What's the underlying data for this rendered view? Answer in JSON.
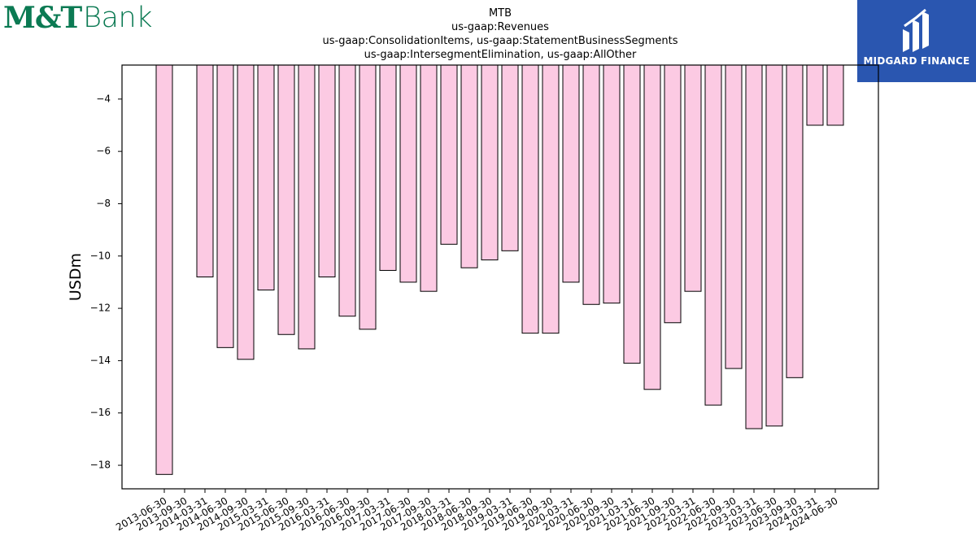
{
  "brand": {
    "left_logo_mt": "M&T",
    "left_logo_bank": "Bank",
    "left_color": "#0b7a53",
    "right_logo_name": "MIDGARD FINANCE",
    "right_bg": "#2a56b0"
  },
  "chart_data": {
    "type": "bar",
    "title_lines": [
      "MTB",
      "us-gaap:Revenues",
      "us-gaap:ConsolidationItems, us-gaap:StatementBusinessSegments",
      "us-gaap:IntersegmentElimination, us-gaap:AllOther"
    ],
    "xlabel": "",
    "ylabel": "USDm",
    "ylim": [
      -18.9,
      -2.7
    ],
    "yticks": [
      -4,
      -6,
      -8,
      -10,
      -12,
      -14,
      -16,
      -18
    ],
    "ytick_labels": [
      "−4",
      "−6",
      "−8",
      "−10",
      "−12",
      "−14",
      "−16",
      "−18"
    ],
    "bar_color": "#fccae3",
    "bar_edge": "#000000",
    "categories": [
      "2013-06-30",
      "2013-09-30",
      "2014-03-31",
      "2014-06-30",
      "2014-09-30",
      "2015-03-31",
      "2015-06-30",
      "2015-09-30",
      "2016-03-31",
      "2016-06-30",
      "2016-09-30",
      "2017-03-31",
      "2017-06-30",
      "2017-09-30",
      "2018-03-31",
      "2018-06-30",
      "2018-09-30",
      "2019-03-31",
      "2019-06-30",
      "2019-09-30",
      "2020-03-31",
      "2020-06-30",
      "2020-09-30",
      "2021-03-31",
      "2021-06-30",
      "2021-09-30",
      "2022-03-31",
      "2022-06-30",
      "2022-09-30",
      "2023-03-31",
      "2023-06-30",
      "2023-09-30",
      "2024-03-31",
      "2024-06-30"
    ],
    "values": [
      -18.35,
      null,
      -10.8,
      -13.5,
      -13.95,
      -11.3,
      -13.0,
      -13.55,
      -10.8,
      -12.3,
      -12.8,
      -10.55,
      -11.0,
      -11.35,
      -9.55,
      -10.45,
      -10.15,
      -9.8,
      -12.95,
      -12.95,
      -11.0,
      -11.85,
      -11.8,
      -14.1,
      -15.1,
      -12.55,
      -11.35,
      -15.7,
      -14.3,
      -16.6,
      -16.5,
      -14.65,
      -5.0,
      -5.0
    ]
  }
}
